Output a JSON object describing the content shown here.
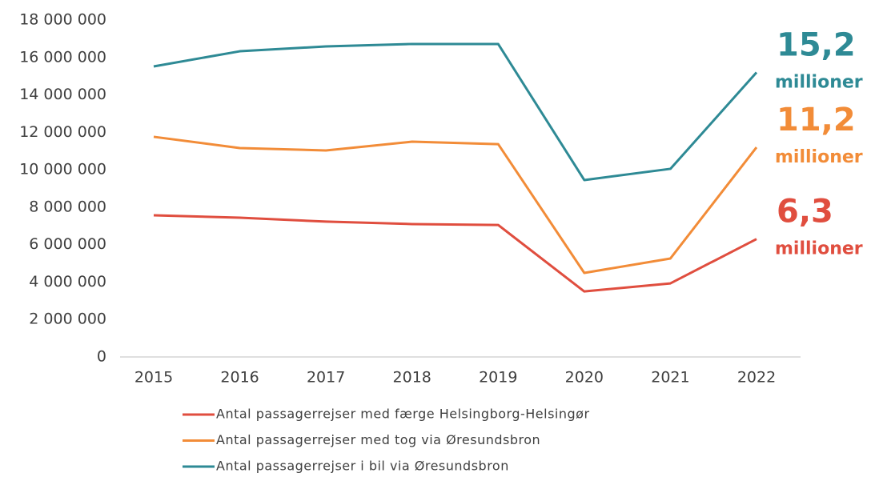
{
  "chart_data": {
    "type": "line",
    "x": [
      2015,
      2016,
      2017,
      2018,
      2019,
      2020,
      2021,
      2022
    ],
    "series": [
      {
        "name": "Antal passagerrejser med færge Helsingborg-Helsingør",
        "color": "#e04e3f",
        "values": [
          7570000,
          7440000,
          7230000,
          7100000,
          7050000,
          3500000,
          3930000,
          6300000
        ],
        "value_labels": [
          null,
          null,
          null,
          null,
          null,
          null,
          null,
          "6,3"
        ],
        "annotation": "millioner"
      },
      {
        "name": "Antal passagerrejser med tog via Øresundsbron",
        "color": "#f28c38",
        "values": [
          11760000,
          11160000,
          11030000,
          11500000,
          11370000,
          4490000,
          5260000,
          11200000
        ],
        "value_labels": [
          null,
          null,
          null,
          null,
          null,
          null,
          null,
          "11,2"
        ],
        "annotation": "millioner"
      },
      {
        "name": "Antal passagerrejser i bil via Øresundsbron",
        "color": "#2e8a95",
        "values": [
          15520000,
          16330000,
          16590000,
          16720000,
          16720000,
          9450000,
          10050000,
          15200000
        ],
        "value_labels": [
          null,
          null,
          null,
          null,
          null,
          null,
          null,
          "15,2"
        ],
        "annotation": "millioner"
      }
    ],
    "ylim": [
      0,
      18000000
    ],
    "yticks": [
      0,
      {
        "value": 2000000,
        "label": "2 000 000"
      },
      {
        "value": 4000000,
        "label": "4 000 000"
      },
      {
        "value": 6000000,
        "label": "6 000 000"
      },
      {
        "value": 8000000,
        "label": "8 000 000"
      },
      {
        "value": 10000000,
        "label": "10 000 000"
      },
      {
        "value": 12000000,
        "label": "12 000 000"
      },
      {
        "value": 14000000,
        "label": "14 000 000"
      },
      {
        "value": 16000000,
        "label": "16 000 000"
      },
      {
        "value": 18000000,
        "label": "18 000 000"
      }
    ],
    "grid": false,
    "legend": "bottom"
  }
}
